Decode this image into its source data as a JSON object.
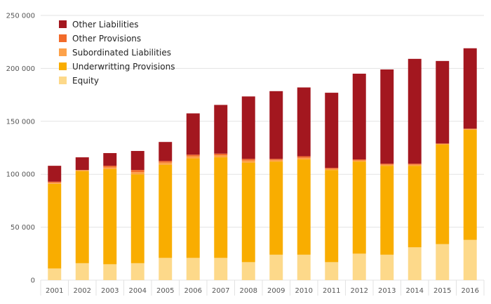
{
  "chart_data": {
    "type": "bar",
    "stacked": true,
    "title": "",
    "xlabel": "",
    "ylabel": "",
    "ylim": [
      0,
      250000
    ],
    "yticks": [
      0,
      50000,
      100000,
      150000,
      200000,
      250000
    ],
    "ytick_labels": [
      "0",
      "50 000",
      "100 000",
      "150 000",
      "200 000",
      "250 000"
    ],
    "grid": true,
    "legend_position": "top-left",
    "categories": [
      "2001",
      "2002",
      "2003",
      "2004",
      "2005",
      "2006",
      "2007",
      "2008",
      "2009",
      "2010",
      "2011",
      "2012",
      "2013",
      "2014",
      "2015",
      "2016"
    ],
    "series": [
      {
        "name": "Equity",
        "color": "#fdd98a",
        "values": [
          11000,
          16000,
          15000,
          16000,
          21000,
          21000,
          21000,
          17000,
          24000,
          24000,
          17000,
          25000,
          24000,
          31000,
          34000,
          38000
        ]
      },
      {
        "name": "Underwritting Provisions",
        "color": "#f9ad00",
        "values": [
          80000,
          87000,
          90000,
          84000,
          88000,
          94000,
          95000,
          94000,
          88000,
          90000,
          87000,
          87000,
          84000,
          77000,
          94000,
          104000
        ]
      },
      {
        "name": "Subordinated Liabilities",
        "color": "#fda24a",
        "values": [
          1000,
          1000,
          1500,
          2000,
          2000,
          2000,
          2000,
          2000,
          1500,
          1500,
          1000,
          1000,
          1000,
          1000,
          1000,
          1000
        ]
      },
      {
        "name": "Other Provisions",
        "color": "#f26b2a",
        "values": [
          1000,
          0,
          1500,
          2000,
          1500,
          1500,
          1500,
          1500,
          1000,
          1500,
          1000,
          1000,
          1000,
          1000,
          0,
          0
        ]
      },
      {
        "name": "Other Liabilities",
        "color": "#a3171f",
        "values": [
          15000,
          12000,
          12000,
          18000,
          18000,
          39000,
          46000,
          59000,
          64000,
          65000,
          71000,
          81000,
          89000,
          99000,
          78000,
          76000
        ]
      }
    ],
    "legend_order": [
      "Other Liabilities",
      "Other Provisions",
      "Subordinated Liabilities",
      "Underwritting Provisions",
      "Equity"
    ]
  }
}
